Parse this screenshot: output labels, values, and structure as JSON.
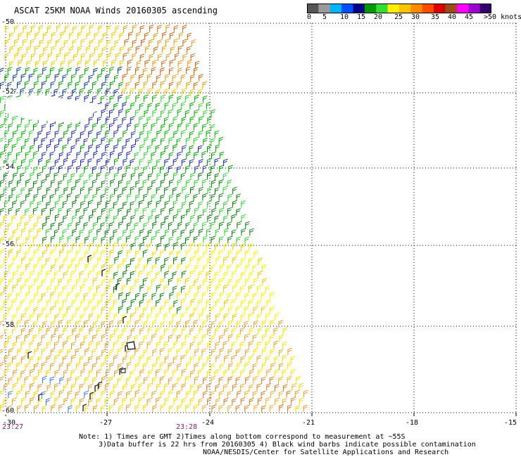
{
  "title": "ASCAT 25KM NOAA Winds 20160305 ascending",
  "colorbar": {
    "colors": [
      "#555555",
      "#9a9a9a",
      "#00b4ff",
      "#0050ff",
      "#00008b",
      "#009a00",
      "#33dd33",
      "#ffee00",
      "#ffc400",
      "#ff8c00",
      "#ff4a00",
      "#dd0000",
      "#9b4a1a",
      "#ff00ff",
      "#a000d0",
      "#35006a"
    ],
    "labels": [
      "0",
      "5",
      "10",
      "15",
      "20",
      "25",
      "30",
      "35",
      "40",
      "45",
      ">50 knots"
    ]
  },
  "axes": {
    "lat_labels": [
      "-50",
      "-52",
      "-54",
      "-56",
      "-58",
      "-60"
    ],
    "lon_labels": [
      "-30",
      "-27",
      "-24",
      "-21",
      "-18",
      "-15"
    ]
  },
  "time_labels": [
    "23:27",
    "23:28"
  ],
  "notes": [
    "Note: 1) Times are GMT 2)Times along bottom correspond to measurement at ~55S",
    "3)Data buffer is 22 hrs from 20160305 4) Black wind barbs indicate possible contamination",
    "NOAA/NESDIS/Center for Satellite Applications and Research"
  ]
}
